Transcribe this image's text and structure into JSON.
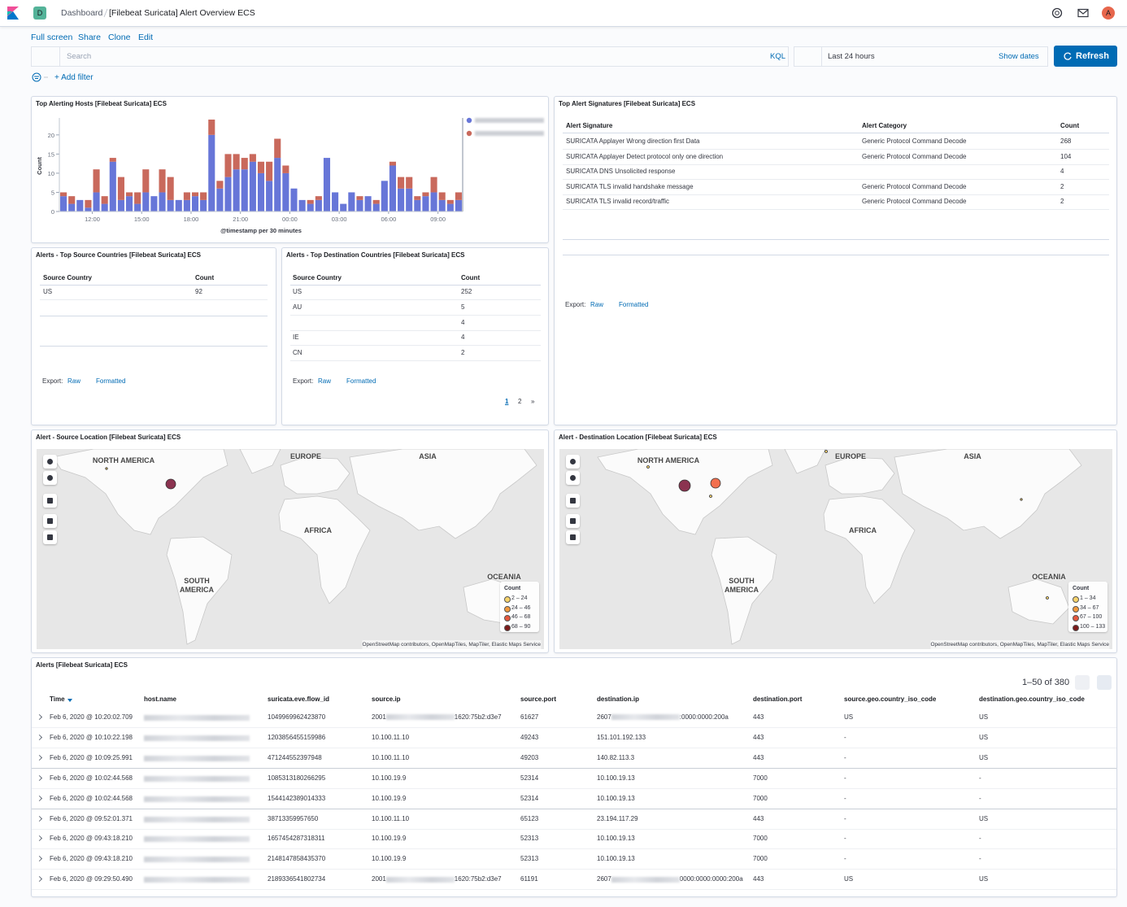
{
  "header": {
    "space": "D",
    "breadcrumbs": [
      "Dashboard",
      "[Filebeat Suricata] Alert Overview ECS"
    ],
    "user": "A"
  },
  "menu": [
    "Full screen",
    "Share",
    "Clone",
    "Edit"
  ],
  "query_bar": {
    "placeholder": "Search",
    "language": "KQL",
    "time_range": "Last 24 hours",
    "show_dates": "Show dates",
    "refresh": "Refresh",
    "add_filter": "+ Add filter"
  },
  "chart_data": {
    "type": "bar",
    "stacked": true,
    "title": "Top Alerting Hosts [Filebeat Suricata] ECS",
    "x_label": "@timestamp per 30 minutes",
    "y_label": "Count",
    "x": [
      10.25,
      10.75,
      11.25,
      11.75,
      12.25,
      12.75,
      13.25,
      13.75,
      14.25,
      14.75,
      15.25,
      15.75,
      16.25,
      16.75,
      17.25,
      17.75,
      18.25,
      18.75,
      19.25,
      19.75,
      20.25,
      20.75,
      21.25,
      21.75,
      22.25,
      22.75,
      23.25,
      23.75,
      24.25,
      24.75,
      25.25,
      25.75,
      26.25,
      26.75,
      27.25,
      27.75,
      28.25,
      28.75,
      29.25,
      29.75,
      30.25,
      30.75,
      31.25,
      31.75,
      32.25,
      32.75,
      33.25,
      33.75,
      34.25
    ],
    "xlim": [
      10,
      34.5
    ],
    "xticks": [
      {
        "value": 12,
        "label": "12:00"
      },
      {
        "value": 15,
        "label": "15:00"
      },
      {
        "value": 18,
        "label": "18:00"
      },
      {
        "value": 21,
        "label": "21:00"
      },
      {
        "value": 24,
        "label": "00:00"
      },
      {
        "value": 27,
        "label": "03:00"
      },
      {
        "value": 30,
        "label": "06:00"
      },
      {
        "value": 33,
        "label": "09:00"
      }
    ],
    "ylim": [
      0,
      24
    ],
    "yticks": [
      0,
      5,
      10,
      15,
      20
    ],
    "grid": false,
    "series": [
      {
        "color": "#6776d8",
        "values": [
          4,
          2,
          3,
          1,
          5,
          2,
          13,
          3,
          4,
          2,
          5,
          4,
          5,
          3,
          3,
          3,
          4,
          3,
          20,
          6,
          9,
          11,
          11,
          13,
          10,
          8,
          14,
          10,
          6,
          3,
          2,
          3,
          14,
          5,
          2,
          5,
          3,
          4,
          2,
          8,
          12,
          6,
          6,
          3,
          4,
          5,
          3,
          2,
          3
        ]
      },
      {
        "color": "#c9695c",
        "values": [
          1,
          2,
          0,
          2,
          6,
          2,
          1,
          6,
          1,
          3,
          6,
          0,
          6,
          6,
          0,
          2,
          1,
          2,
          4,
          2,
          6,
          4,
          3,
          2,
          3,
          5,
          5,
          2,
          0,
          0,
          1,
          1,
          0,
          0,
          0,
          0,
          1,
          0,
          1,
          0,
          1,
          3,
          3,
          1,
          1,
          4,
          2,
          1,
          2
        ]
      }
    ]
  },
  "signatures": {
    "title": "Top Alert Signatures [Filebeat Suricata] ECS",
    "columns": [
      "Alert Signature",
      "Alert Category",
      "Count"
    ],
    "rows": [
      [
        "SURICATA Applayer Wrong direction first Data",
        "Generic Protocol Command Decode",
        268
      ],
      [
        "SURICATA Applayer Detect protocol only one direction",
        "Generic Protocol Command Decode",
        104
      ],
      [
        "SURICATA DNS Unsolicited response",
        null,
        4
      ],
      [
        "SURICATA TLS invalid handshake message",
        "Generic Protocol Command Decode",
        2
      ],
      [
        "SURICATA TLS invalid record/traffic",
        "Generic Protocol Command Decode",
        2
      ]
    ],
    "export": {
      "label": "Export:",
      "raw": "Raw",
      "formatted": "Formatted"
    }
  },
  "source_countries": {
    "title": "Alerts - Top Source Countries [Filebeat Suricata] ECS",
    "columns": [
      "Source Country",
      "Count"
    ],
    "rows": [
      [
        "US",
        92
      ]
    ],
    "export": {
      "label": "Export:",
      "raw": "Raw",
      "formatted": "Formatted"
    }
  },
  "destination_countries": {
    "title": "Alerts - Top Destination Countries [Filebeat Suricata] ECS",
    "columns": [
      "Source Country",
      "Count"
    ],
    "rows": [
      [
        "US",
        252
      ],
      [
        "AU",
        5
      ],
      [
        null,
        4
      ],
      [
        "IE",
        4
      ],
      [
        "CN",
        2
      ]
    ],
    "export": {
      "label": "Export:",
      "raw": "Raw",
      "formatted": "Formatted"
    },
    "pagination": [
      "1",
      "2",
      "»"
    ]
  },
  "source_map": {
    "title": "Alert - Source Location [Filebeat Suricata] ECS",
    "regions": [
      "NORTH AMERICA",
      "EUROPE",
      "ASIA",
      "AFRICA",
      "SOUTH AMERICA",
      "OCEANIA"
    ],
    "legend_title": "Count",
    "legend": [
      "2 – 24",
      "24 – 46",
      "46 – 68",
      "68 – 90"
    ],
    "attribution": "OpenStreetMap contributors, OpenMapTiles, MapTiler, Elastic Maps Service"
  },
  "destination_map": {
    "title": "Alert - Destination Location [Filebeat Suricata] ECS",
    "regions": [
      "NORTH AMERICA",
      "EUROPE",
      "ASIA",
      "AFRICA",
      "SOUTH AMERICA",
      "OCEANIA"
    ],
    "legend_title": "Count",
    "legend": [
      "1 – 34",
      "34 – 67",
      "67 – 100",
      "100 – 133"
    ],
    "attribution": "OpenStreetMap contributors, OpenMapTiles, MapTiler, Elastic Maps Service"
  },
  "alerts": {
    "title": "Alerts [Filebeat Suricata] ECS",
    "pagination": "1–50 of 380",
    "columns": [
      "Time",
      "host.name",
      "suricata.eve.flow_id",
      "source.ip",
      "source.port",
      "destination.ip",
      "destination.port",
      "source.geo.country_iso_code",
      "destination.geo.country_iso_code"
    ],
    "rows": [
      [
        "Feb 6, 2020 @ 10:20:02.709",
        null,
        "1049969962423870",
        [
          "2001",
          "1620:75b2:d3e7"
        ],
        "61627",
        [
          "2607",
          ":0000:0000:200a"
        ],
        "443",
        "US",
        "US"
      ],
      [
        "Feb 6, 2020 @ 10:10:22.198",
        null,
        "1203856455159986",
        "10.100.11.10",
        "49243",
        "151.101.192.133",
        "443",
        "-",
        "US"
      ],
      [
        "Feb 6, 2020 @ 10:09:25.991",
        null,
        "471244552397948",
        "10.100.11.10",
        "49203",
        "140.82.113.3",
        "443",
        "-",
        "US"
      ],
      [
        "Feb 6, 2020 @ 10:02:44.568",
        null,
        "1085313180266295",
        "10.100.19.9",
        "52314",
        "10.100.19.13",
        "7000",
        "-",
        "-"
      ],
      [
        "Feb 6, 2020 @ 10:02:44.568",
        null,
        "1544142389014333",
        "10.100.19.9",
        "52314",
        "10.100.19.13",
        "7000",
        "-",
        "-"
      ],
      [
        "Feb 6, 2020 @ 09:52:01.371",
        null,
        "38713359957650",
        "10.100.11.10",
        "65123",
        "23.194.117.29",
        "443",
        "-",
        "US"
      ],
      [
        "Feb 6, 2020 @ 09:43:18.210",
        null,
        "1657454287318311",
        "10.100.19.9",
        "52313",
        "10.100.19.13",
        "7000",
        "-",
        "-"
      ],
      [
        "Feb 6, 2020 @ 09:43:18.210",
        null,
        "2148147858435370",
        "10.100.19.9",
        "52313",
        "10.100.19.13",
        "7000",
        "-",
        "-"
      ],
      [
        "Feb 6, 2020 @ 09:29:50.490",
        null,
        "2189336541802734",
        [
          "2001",
          "1620:75b2:d3e7"
        ],
        "61191",
        [
          "2607",
          "0000:0000:0000:200a"
        ],
        "443",
        "US",
        "US"
      ]
    ]
  }
}
